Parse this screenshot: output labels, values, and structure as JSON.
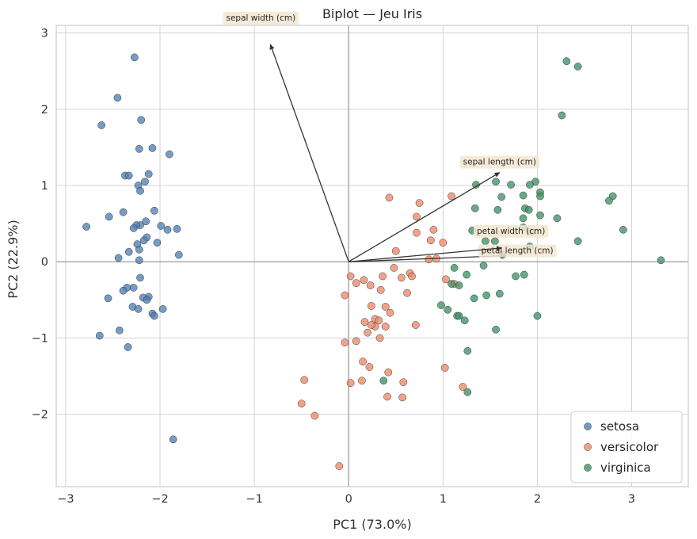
{
  "chart_data": {
    "type": "scatter",
    "title": "Biplot — Jeu Iris",
    "xlabel": "PC1 (73.0%)",
    "ylabel": "PC2 (22.9%)",
    "xlim": [
      -3.1,
      3.6
    ],
    "ylim": [
      -2.95,
      3.1
    ],
    "xticks": [
      -3,
      -2,
      -1,
      0,
      1,
      2,
      3
    ],
    "xtick_labels": [
      "−3",
      "−2",
      "−1",
      "0",
      "1",
      "2",
      "3"
    ],
    "yticks": [
      -2,
      -1,
      0,
      1,
      2,
      3
    ],
    "ytick_labels": [
      "−2",
      "−1",
      "0",
      "1",
      "2",
      "3"
    ],
    "grid": true,
    "legend_position": "bottom-right",
    "colors": {
      "setosa": "#4f7fb3",
      "versicolor": "#ee8866",
      "virginica": "#3f9166",
      "arrow": "#333333",
      "label_bg": "#f5e6cf"
    },
    "series": [
      {
        "name": "setosa",
        "color": "#4f7fb3",
        "points": [
          [
            -2.27,
            2.68
          ],
          [
            -2.45,
            2.15
          ],
          [
            -2.2,
            1.86
          ],
          [
            -2.62,
            1.79
          ],
          [
            -2.08,
            1.49
          ],
          [
            -2.22,
            1.48
          ],
          [
            -1.9,
            1.41
          ],
          [
            -2.12,
            1.15
          ],
          [
            -2.37,
            1.13
          ],
          [
            -2.33,
            1.13
          ],
          [
            -2.16,
            1.05
          ],
          [
            -2.23,
            1.0
          ],
          [
            -2.21,
            0.93
          ],
          [
            -2.06,
            0.67
          ],
          [
            -2.39,
            0.65
          ],
          [
            -2.54,
            0.59
          ],
          [
            -2.15,
            0.53
          ],
          [
            -2.21,
            0.48
          ],
          [
            -2.25,
            0.48
          ],
          [
            -2.28,
            0.44
          ],
          [
            -2.78,
            0.46
          ],
          [
            -1.99,
            0.47
          ],
          [
            -1.92,
            0.42
          ],
          [
            -1.82,
            0.43
          ],
          [
            -2.14,
            0.32
          ],
          [
            -2.17,
            0.28
          ],
          [
            -2.03,
            0.25
          ],
          [
            -2.24,
            0.23
          ],
          [
            -2.22,
            0.16
          ],
          [
            -2.33,
            0.13
          ],
          [
            -1.8,
            0.09
          ],
          [
            -2.44,
            0.05
          ],
          [
            -2.22,
            0.02
          ],
          [
            -2.21,
            -0.21
          ],
          [
            -2.35,
            -0.34
          ],
          [
            -2.39,
            -0.38
          ],
          [
            -2.28,
            -0.34
          ],
          [
            -2.55,
            -0.48
          ],
          [
            -2.12,
            -0.46
          ],
          [
            -2.18,
            -0.47
          ],
          [
            -2.14,
            -0.5
          ],
          [
            -2.29,
            -0.59
          ],
          [
            -1.97,
            -0.62
          ],
          [
            -2.23,
            -0.62
          ],
          [
            -2.08,
            -0.68
          ],
          [
            -2.06,
            -0.71
          ],
          [
            -2.43,
            -0.9
          ],
          [
            -2.64,
            -0.97
          ],
          [
            -2.34,
            -1.12
          ],
          [
            -1.86,
            -2.33
          ]
        ]
      },
      {
        "name": "versicolor",
        "color": "#ee8866",
        "points": [
          [
            1.09,
            0.86
          ],
          [
            0.43,
            0.84
          ],
          [
            0.75,
            0.77
          ],
          [
            0.72,
            0.59
          ],
          [
            0.9,
            0.42
          ],
          [
            0.72,
            0.38
          ],
          [
            0.87,
            0.28
          ],
          [
            1.0,
            0.25
          ],
          [
            0.85,
            0.03
          ],
          [
            0.5,
            0.14
          ],
          [
            0.93,
            0.04
          ],
          [
            0.48,
            -0.08
          ],
          [
            0.65,
            -0.15
          ],
          [
            0.67,
            -0.19
          ],
          [
            0.02,
            -0.19
          ],
          [
            0.16,
            -0.24
          ],
          [
            1.03,
            -0.23
          ],
          [
            0.08,
            -0.28
          ],
          [
            0.36,
            -0.19
          ],
          [
            0.56,
            -0.21
          ],
          [
            0.23,
            -0.31
          ],
          [
            1.12,
            -0.29
          ],
          [
            0.34,
            -0.37
          ],
          [
            0.62,
            -0.41
          ],
          [
            -0.04,
            -0.44
          ],
          [
            0.24,
            -0.58
          ],
          [
            0.39,
            -0.59
          ],
          [
            0.44,
            -0.67
          ],
          [
            0.28,
            -0.75
          ],
          [
            0.17,
            -0.79
          ],
          [
            0.28,
            -0.85
          ],
          [
            0.32,
            -0.77
          ],
          [
            0.39,
            -0.85
          ],
          [
            0.71,
            -0.83
          ],
          [
            0.24,
            -0.83
          ],
          [
            0.2,
            -0.93
          ],
          [
            0.33,
            -1.0
          ],
          [
            -0.04,
            -1.06
          ],
          [
            0.08,
            -1.04
          ],
          [
            0.15,
            -1.31
          ],
          [
            1.02,
            -1.39
          ],
          [
            0.22,
            -1.38
          ],
          [
            0.42,
            -1.45
          ],
          [
            -0.47,
            -1.55
          ],
          [
            0.14,
            -1.56
          ],
          [
            0.02,
            -1.59
          ],
          [
            0.58,
            -1.58
          ],
          [
            1.21,
            -1.64
          ],
          [
            0.41,
            -1.77
          ],
          [
            0.57,
            -1.78
          ],
          [
            -0.5,
            -1.86
          ],
          [
            -0.36,
            -2.02
          ],
          [
            -0.1,
            -2.68
          ]
        ]
      },
      {
        "name": "virginica",
        "color": "#3f9166",
        "points": [
          [
            2.31,
            2.63
          ],
          [
            2.43,
            2.56
          ],
          [
            2.26,
            1.92
          ],
          [
            1.56,
            1.05
          ],
          [
            1.98,
            1.05
          ],
          [
            1.35,
            1.01
          ],
          [
            1.72,
            1.01
          ],
          [
            1.92,
            1.01
          ],
          [
            2.03,
            0.91
          ],
          [
            2.03,
            0.86
          ],
          [
            1.85,
            0.87
          ],
          [
            2.8,
            0.86
          ],
          [
            1.62,
            0.85
          ],
          [
            2.76,
            0.8
          ],
          [
            1.87,
            0.7
          ],
          [
            1.34,
            0.7
          ],
          [
            1.58,
            0.68
          ],
          [
            1.91,
            0.68
          ],
          [
            2.03,
            0.61
          ],
          [
            2.21,
            0.57
          ],
          [
            1.85,
            0.57
          ],
          [
            1.85,
            0.45
          ],
          [
            2.91,
            0.42
          ],
          [
            1.31,
            0.41
          ],
          [
            1.94,
            0.39
          ],
          [
            1.45,
            0.27
          ],
          [
            1.55,
            0.27
          ],
          [
            2.43,
            0.27
          ],
          [
            1.92,
            0.2
          ],
          [
            1.63,
            0.09
          ],
          [
            3.31,
            0.02
          ],
          [
            1.43,
            -0.05
          ],
          [
            1.12,
            -0.08
          ],
          [
            1.25,
            -0.17
          ],
          [
            1.77,
            -0.19
          ],
          [
            1.86,
            -0.17
          ],
          [
            1.17,
            -0.31
          ],
          [
            1.09,
            -0.29
          ],
          [
            1.6,
            -0.42
          ],
          [
            1.46,
            -0.44
          ],
          [
            1.33,
            -0.48
          ],
          [
            0.98,
            -0.57
          ],
          [
            1.05,
            -0.63
          ],
          [
            2.0,
            -0.71
          ],
          [
            1.15,
            -0.71
          ],
          [
            1.17,
            -0.71
          ],
          [
            1.23,
            -0.77
          ],
          [
            1.56,
            -0.89
          ],
          [
            1.26,
            -1.17
          ],
          [
            0.37,
            -1.56
          ],
          [
            1.26,
            -1.71
          ]
        ]
      }
    ],
    "loadings": [
      {
        "name": "sepal length (cm)",
        "x": 1.6,
        "y": 1.17
      },
      {
        "name": "sepal width (cm)",
        "x": -0.83,
        "y": 2.85
      },
      {
        "name": "petal length (cm)",
        "x": 1.67,
        "y": 0.08
      },
      {
        "name": "petal width (cm)",
        "x": 1.62,
        "y": 0.18
      }
    ]
  }
}
